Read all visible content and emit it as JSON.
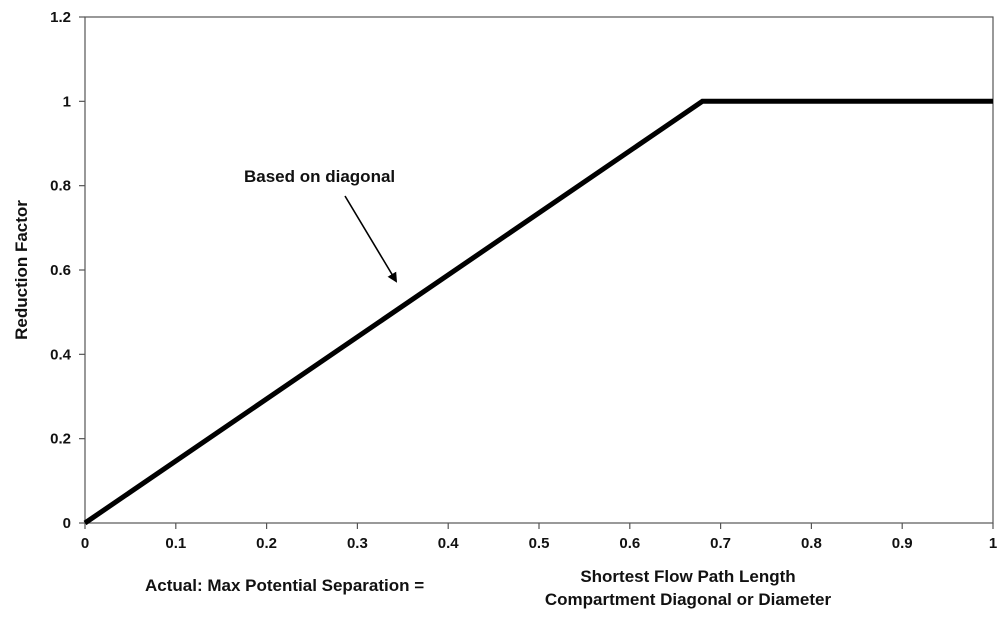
{
  "chart_data": {
    "type": "line",
    "title": "",
    "ylabel": "Reduction Factor",
    "xlabel": {
      "prefix": "Actual: Max Potential Separation =",
      "numerator": "Shortest Flow Path Length",
      "denominator": "Compartment Diagonal or Diameter"
    },
    "xlim": [
      0,
      1
    ],
    "ylim": [
      0,
      1.2
    ],
    "x_ticks": [
      "0",
      "0.1",
      "0.2",
      "0.3",
      "0.4",
      "0.5",
      "0.6",
      "0.7",
      "0.8",
      "0.9",
      "1"
    ],
    "y_ticks": [
      "0",
      "0.2",
      "0.4",
      "0.6",
      "0.8",
      "1",
      "1.2"
    ],
    "grid": false,
    "legend": "none",
    "series": [
      {
        "x": [
          0,
          0.68,
          1.0
        ],
        "y": [
          0,
          1.0,
          1.0
        ],
        "color": "#000000"
      }
    ],
    "annotations": [
      {
        "text": "Based on diagonal",
        "arrow_to": {
          "x": 0.345,
          "y": 0.575
        }
      }
    ]
  }
}
